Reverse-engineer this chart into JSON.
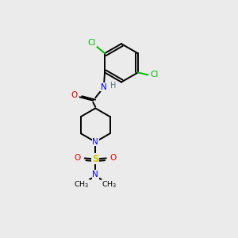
{
  "background_color": "#ebebeb",
  "figsize": [
    3.0,
    3.0
  ],
  "dpi": 100,
  "colors": {
    "C": "#000000",
    "N": "#0000ee",
    "O": "#dd0000",
    "S": "#cccc00",
    "Cl": "#00bb00",
    "H": "#557788",
    "bond": "#000000"
  },
  "lw": 1.4,
  "fontsize": 7.5
}
